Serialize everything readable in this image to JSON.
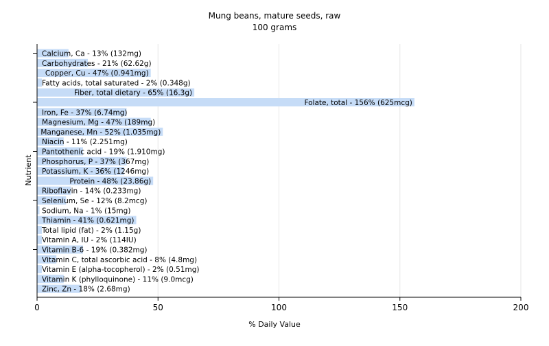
{
  "chart_data": {
    "type": "bar",
    "orientation": "horizontal",
    "title": "Mung beans, mature seeds, raw",
    "subtitle": "100 grams",
    "xlabel": "% Daily Value",
    "ylabel": "Nutrient",
    "xlim": [
      0,
      200
    ],
    "xticks": [
      0,
      50,
      100,
      150,
      200
    ],
    "grid": true,
    "bar_color": "#c6dcf7",
    "categories": [
      "Calcium, Ca",
      "Carbohydrates",
      "Copper, Cu",
      "Fatty acids, total saturated",
      "Fiber, total dietary",
      "Folate, total",
      "Iron, Fe",
      "Magnesium, Mg",
      "Manganese, Mn",
      "Niacin",
      "Pantothenic acid",
      "Phosphorus, P",
      "Potassium, K",
      "Protein",
      "Riboflavin",
      "Selenium, Se",
      "Sodium, Na",
      "Thiamin",
      "Total lipid (fat)",
      "Vitamin A, IU",
      "Vitamin B-6",
      "Vitamin C, total ascorbic acid",
      "Vitamin E (alpha-tocopherol)",
      "Vitamin K (phylloquinone)",
      "Zinc, Zn"
    ],
    "values": [
      13,
      21,
      47,
      2,
      65,
      156,
      37,
      47,
      52,
      11,
      19,
      37,
      36,
      48,
      14,
      12,
      1,
      41,
      2,
      2,
      19,
      8,
      2,
      11,
      18
    ],
    "labels": [
      "Calcium, Ca - 13% (132mg)",
      "Carbohydrates - 21% (62.62g)",
      "Copper, Cu - 47% (0.941mg)",
      "Fatty acids, total saturated - 2% (0.348g)",
      "Fiber, total dietary - 65% (16.3g)",
      "Folate, total - 156% (625mcg)",
      "Iron, Fe - 37% (6.74mg)",
      "Magnesium, Mg - 47% (189mg)",
      "Manganese, Mn - 52% (1.035mg)",
      "Niacin - 11% (2.251mg)",
      "Pantothenic acid - 19% (1.910mg)",
      "Phosphorus, P - 37% (367mg)",
      "Potassium, K - 36% (1246mg)",
      "Protein - 48% (23.86g)",
      "Riboflavin - 14% (0.233mg)",
      "Selenium, Se - 12% (8.2mcg)",
      "Sodium, Na - 1% (15mg)",
      "Thiamin - 41% (0.621mg)",
      "Total lipid (fat) - 2% (1.15g)",
      "Vitamin A, IU - 2% (114IU)",
      "Vitamin B-6 - 19% (0.382mg)",
      "Vitamin C, total ascorbic acid - 8% (4.8mg)",
      "Vitamin E (alpha-tocopherol) - 2% (0.51mg)",
      "Vitamin K (phylloquinone) - 11% (9.0mcg)",
      "Zinc, Zn - 18% (2.68mg)"
    ]
  }
}
